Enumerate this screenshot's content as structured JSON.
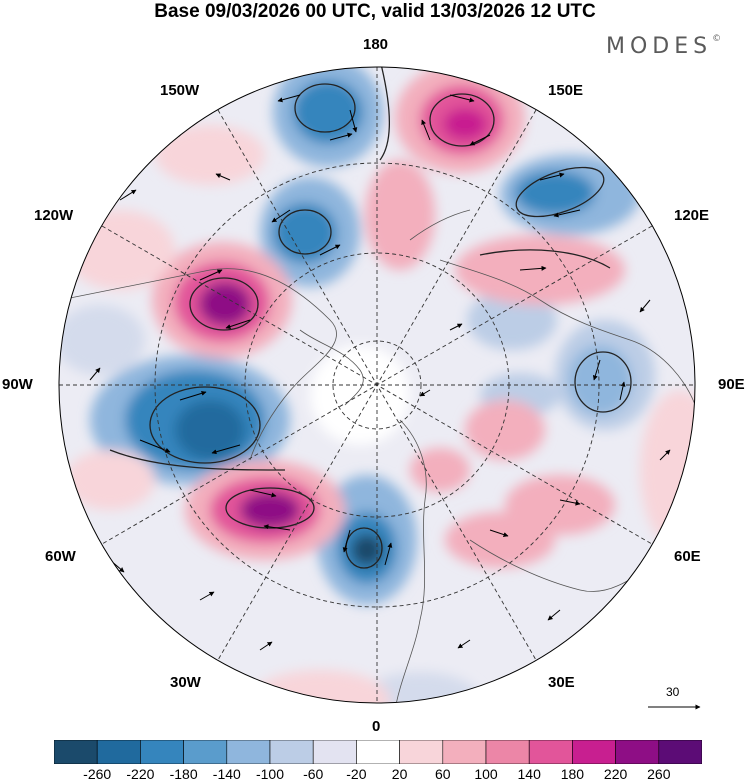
{
  "title": "Base 09/03/2026 00 UTC, valid 13/03/2026 12 UTC",
  "brand": "MODES",
  "brand_mark": "©",
  "longitude_labels": {
    "n180": "180",
    "w150": "150W",
    "e150": "150E",
    "w120": "120W",
    "e120": "120E",
    "w90": "90W",
    "e90": "90E",
    "w60": "60W",
    "e60": "60E",
    "w30": "30W",
    "e30": "30E",
    "s0": "0"
  },
  "reference_vector": {
    "label": "30",
    "value": 30
  },
  "colorbar": {
    "colors": [
      "#1b4a6b",
      "#206a9e",
      "#3585bd",
      "#5a9ccc",
      "#8fb6dd",
      "#bccde6",
      "#e3e3f1",
      "#ffffff",
      "#f8d5da",
      "#f3afbd",
      "#ec86a7",
      "#e2559a",
      "#c81f90",
      "#8e0e85",
      "#5c0c76"
    ],
    "ticks": [
      "-260",
      "-220",
      "-180",
      "-140",
      "-100",
      "-60",
      "-20",
      "20",
      "60",
      "100",
      "140",
      "180",
      "220",
      "260"
    ]
  }
}
